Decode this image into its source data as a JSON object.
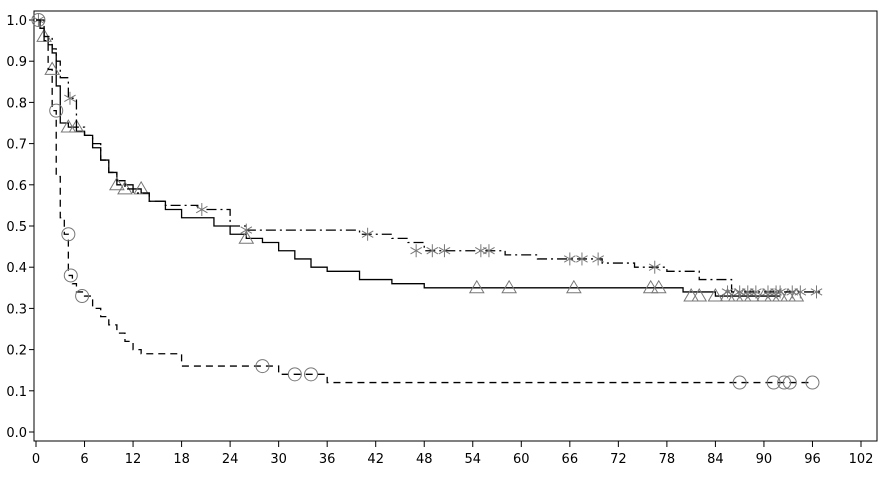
{
  "chart_data": {
    "type": "line",
    "title": "",
    "xlabel": "",
    "ylabel": "",
    "xlim": [
      0,
      102
    ],
    "ylim": [
      0.0,
      1.0
    ],
    "x_ticks": [
      0,
      6,
      12,
      18,
      24,
      30,
      36,
      42,
      48,
      54,
      60,
      66,
      72,
      78,
      84,
      90,
      96,
      102
    ],
    "y_ticks": [
      0.0,
      0.1,
      0.2,
      0.3,
      0.4,
      0.5,
      0.6,
      0.7,
      0.8,
      0.9,
      1.0
    ],
    "grid": false,
    "legend": "none",
    "series": [
      {
        "style": "solid",
        "marker": "triangle",
        "color": "#000000",
        "x": [
          0,
          0.5,
          1,
          1.5,
          2,
          2.5,
          3,
          4,
          5,
          6,
          7,
          8,
          9,
          10,
          11,
          12,
          13,
          14,
          16,
          18,
          20,
          22,
          24,
          26,
          28,
          30,
          32,
          34,
          36,
          40,
          44,
          48,
          54,
          60,
          66,
          72,
          78,
          80,
          84,
          92
        ],
        "y": [
          1.0,
          0.98,
          0.96,
          0.94,
          0.92,
          0.84,
          0.75,
          0.74,
          0.73,
          0.72,
          0.69,
          0.66,
          0.63,
          0.61,
          0.6,
          0.59,
          0.58,
          0.56,
          0.54,
          0.52,
          0.52,
          0.5,
          0.48,
          0.47,
          0.46,
          0.44,
          0.42,
          0.4,
          0.39,
          0.37,
          0.36,
          0.35,
          0.35,
          0.35,
          0.35,
          0.35,
          0.35,
          0.34,
          0.33,
          0.33
        ],
        "censored": [
          [
            1,
            0.96
          ],
          [
            2,
            0.88
          ],
          [
            4,
            0.74
          ],
          [
            5,
            0.74
          ],
          [
            10,
            0.6
          ],
          [
            11,
            0.59
          ],
          [
            13,
            0.59
          ],
          [
            26,
            0.47
          ],
          [
            54.5,
            0.35
          ],
          [
            58.5,
            0.35
          ],
          [
            66.5,
            0.35
          ],
          [
            76,
            0.35
          ],
          [
            77,
            0.35
          ],
          [
            81,
            0.33
          ],
          [
            82,
            0.33
          ],
          [
            84,
            0.33
          ],
          [
            85.5,
            0.33
          ],
          [
            86.5,
            0.33
          ],
          [
            87.5,
            0.33
          ],
          [
            88.5,
            0.33
          ],
          [
            90,
            0.33
          ],
          [
            91,
            0.33
          ],
          [
            92,
            0.33
          ],
          [
            93,
            0.33
          ],
          [
            94,
            0.33
          ]
        ]
      },
      {
        "style": "dashdot",
        "marker": "asterisk",
        "color": "#000000",
        "x": [
          0,
          1,
          2,
          2.5,
          3,
          4,
          5,
          6,
          7,
          8,
          9,
          10,
          11,
          12,
          14,
          16,
          20,
          24,
          26,
          28,
          34,
          40,
          44,
          46,
          48,
          54,
          58,
          62,
          64,
          70,
          74,
          78,
          82,
          86,
          97
        ],
        "y": [
          1.0,
          0.96,
          0.93,
          0.9,
          0.86,
          0.81,
          0.74,
          0.72,
          0.7,
          0.66,
          0.63,
          0.6,
          0.59,
          0.58,
          0.56,
          0.55,
          0.54,
          0.5,
          0.49,
          0.49,
          0.49,
          0.48,
          0.47,
          0.46,
          0.44,
          0.44,
          0.43,
          0.42,
          0.42,
          0.41,
          0.4,
          0.39,
          0.37,
          0.34,
          0.34
        ],
        "censored": [
          [
            0.3,
            1.0
          ],
          [
            4.2,
            0.81
          ],
          [
            20.5,
            0.54
          ],
          [
            26,
            0.49
          ],
          [
            41,
            0.48
          ],
          [
            47,
            0.44
          ],
          [
            49,
            0.44
          ],
          [
            50.5,
            0.44
          ],
          [
            55,
            0.44
          ],
          [
            56,
            0.44
          ],
          [
            66,
            0.42
          ],
          [
            67.5,
            0.42
          ],
          [
            69.5,
            0.42
          ],
          [
            76.5,
            0.4
          ],
          [
            85.5,
            0.34
          ],
          [
            87,
            0.34
          ],
          [
            88,
            0.34
          ],
          [
            89,
            0.34
          ],
          [
            90.5,
            0.34
          ],
          [
            91.5,
            0.34
          ],
          [
            92,
            0.34
          ],
          [
            93.5,
            0.34
          ],
          [
            94.5,
            0.34
          ],
          [
            96.5,
            0.34
          ]
        ]
      },
      {
        "style": "dashed",
        "marker": "circle",
        "color": "#000000",
        "x": [
          0,
          0.5,
          1,
          1.5,
          2,
          2.5,
          3,
          3.5,
          4,
          4.5,
          5,
          6,
          7,
          8,
          9,
          10,
          11,
          12,
          13,
          14,
          18,
          24,
          30,
          36,
          42,
          48,
          60,
          72,
          84,
          96
        ],
        "y": [
          1.0,
          0.98,
          0.95,
          0.88,
          0.78,
          0.62,
          0.52,
          0.48,
          0.38,
          0.36,
          0.34,
          0.33,
          0.3,
          0.28,
          0.26,
          0.24,
          0.22,
          0.2,
          0.19,
          0.19,
          0.16,
          0.16,
          0.14,
          0.12,
          0.12,
          0.12,
          0.12,
          0.12,
          0.12,
          0.12
        ],
        "censored": [
          [
            0.3,
            1.0
          ],
          [
            2.5,
            0.78
          ],
          [
            4,
            0.48
          ],
          [
            4.3,
            0.38
          ],
          [
            5.7,
            0.33
          ],
          [
            28,
            0.16
          ],
          [
            32,
            0.14
          ],
          [
            34,
            0.14
          ],
          [
            87,
            0.12
          ],
          [
            91.2,
            0.12
          ],
          [
            92.5,
            0.12
          ],
          [
            93.2,
            0.12
          ],
          [
            96,
            0.12
          ]
        ]
      }
    ]
  }
}
